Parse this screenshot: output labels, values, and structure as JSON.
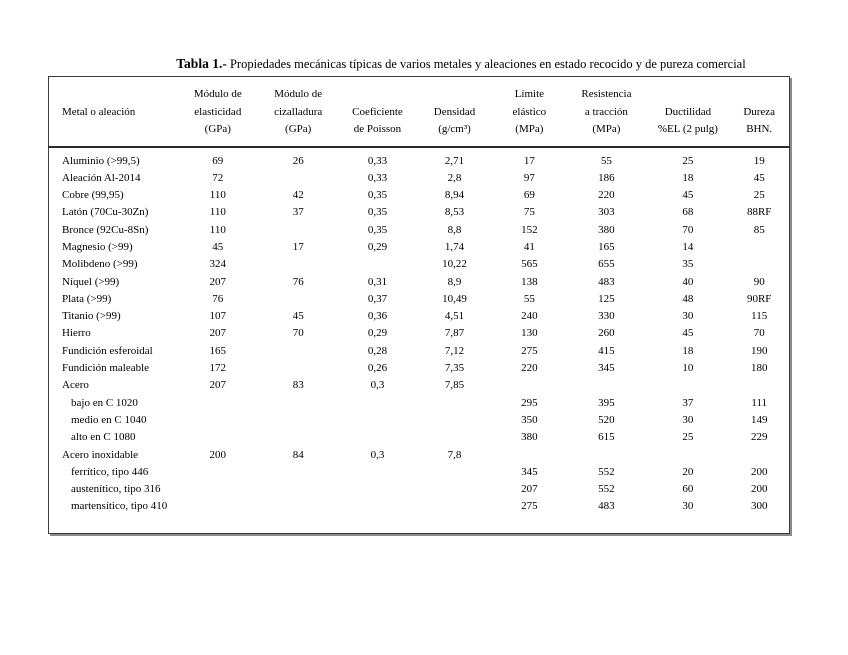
{
  "title": {
    "label": "Tabla 1.-",
    "text": "Propiedades mecánicas típicas de varios metales y aleaciones en estado recocido y de pureza comercial"
  },
  "table": {
    "columns": [
      {
        "id": "metal",
        "lines": [
          "",
          "Metal o aleación",
          ""
        ]
      },
      {
        "id": "elasticidad",
        "lines": [
          "Módulo de",
          "elasticidad",
          "(GPa)"
        ]
      },
      {
        "id": "cizalladura",
        "lines": [
          "Módulo de",
          "cizalladura",
          "(GPa)"
        ]
      },
      {
        "id": "poisson",
        "lines": [
          "",
          "Coeficiente",
          "de Poisson"
        ]
      },
      {
        "id": "densidad",
        "lines": [
          "",
          "Densidad",
          "(g/cm³)"
        ]
      },
      {
        "id": "limite",
        "lines": [
          "Límite",
          "elástico",
          "(MPa)"
        ]
      },
      {
        "id": "resistencia",
        "lines": [
          "Resistencia",
          "a tracción",
          "(MPa)"
        ]
      },
      {
        "id": "ductilidad",
        "lines": [
          "",
          "Ductilidad",
          "%EL (2 pulg)"
        ]
      },
      {
        "id": "dureza",
        "lines": [
          "",
          "Dureza",
          "BHN."
        ]
      }
    ],
    "rows": [
      {
        "metal": "Aluminio (>99,5)",
        "indent": false,
        "values": [
          "69",
          "26",
          "0,33",
          "2,71",
          "17",
          "55",
          "25",
          "19"
        ]
      },
      {
        "metal": "Aleación Al-2014",
        "indent": false,
        "values": [
          "72",
          "",
          "0,33",
          "2,8",
          "97",
          "186",
          "18",
          "45"
        ]
      },
      {
        "metal": "Cobre (99,95)",
        "indent": false,
        "values": [
          "110",
          "42",
          "0,35",
          "8,94",
          "69",
          "220",
          "45",
          "25"
        ]
      },
      {
        "metal": "Latón (70Cu-30Zn)",
        "indent": false,
        "values": [
          "110",
          "37",
          "0,35",
          "8,53",
          "75",
          "303",
          "68",
          "88RF"
        ]
      },
      {
        "metal": "Bronce (92Cu-8Sn)",
        "indent": false,
        "values": [
          "110",
          "",
          "0,35",
          "8,8",
          "152",
          "380",
          "70",
          "85"
        ]
      },
      {
        "metal": "Magnesio (>99)",
        "indent": false,
        "values": [
          "45",
          "17",
          "0,29",
          "1,74",
          "41",
          "165",
          "14",
          ""
        ]
      },
      {
        "metal": "Molibdeno (>99)",
        "indent": false,
        "values": [
          "324",
          "",
          "",
          "10,22",
          "565",
          "655",
          "35",
          ""
        ]
      },
      {
        "metal": "Níquel (>99)",
        "indent": false,
        "values": [
          "207",
          "76",
          "0,31",
          "8,9",
          "138",
          "483",
          "40",
          "90"
        ]
      },
      {
        "metal": "Plata (>99)",
        "indent": false,
        "values": [
          "76",
          "",
          "0,37",
          "10,49",
          "55",
          "125",
          "48",
          "90RF"
        ]
      },
      {
        "metal": "Titanio (>99)",
        "indent": false,
        "values": [
          "107",
          "45",
          "0,36",
          "4,51",
          "240",
          "330",
          "30",
          "115"
        ]
      },
      {
        "metal": "Hierro",
        "indent": false,
        "values": [
          "207",
          "70",
          "0,29",
          "7,87",
          "130",
          "260",
          "45",
          "70"
        ]
      },
      {
        "metal": "Fundición esferoidal",
        "indent": false,
        "values": [
          "165",
          "",
          "0,28",
          "7,12",
          "275",
          "415",
          "18",
          "190"
        ]
      },
      {
        "metal": "Fundición maleable",
        "indent": false,
        "values": [
          "172",
          "",
          "0,26",
          "7,35",
          "220",
          "345",
          "10",
          "180"
        ]
      },
      {
        "metal": "Acero",
        "indent": false,
        "values": [
          "207",
          "83",
          "0,3",
          "7,85",
          "",
          "",
          "",
          ""
        ]
      },
      {
        "metal": "bajo en C 1020",
        "indent": true,
        "values": [
          "",
          "",
          "",
          "",
          "295",
          "395",
          "37",
          "111"
        ]
      },
      {
        "metal": "medio en C 1040",
        "indent": true,
        "values": [
          "",
          "",
          "",
          "",
          "350",
          "520",
          "30",
          "149"
        ]
      },
      {
        "metal": "alto en C 1080",
        "indent": true,
        "values": [
          "",
          "",
          "",
          "",
          "380",
          "615",
          "25",
          "229"
        ]
      },
      {
        "metal": "Acero inoxidable",
        "indent": false,
        "values": [
          "200",
          "84",
          "0,3",
          "7,8",
          "",
          "",
          "",
          ""
        ]
      },
      {
        "metal": "ferrítico, tipo 446",
        "indent": true,
        "values": [
          "",
          "",
          "",
          "",
          "345",
          "552",
          "20",
          "200"
        ]
      },
      {
        "metal": "austenítico, tipo 316",
        "indent": true,
        "values": [
          "",
          "",
          "",
          "",
          "207",
          "552",
          "60",
          "200"
        ]
      },
      {
        "metal": "martensítico, tipo 410",
        "indent": true,
        "values": [
          "",
          "",
          "",
          "",
          "275",
          "483",
          "30",
          "300"
        ]
      }
    ]
  }
}
